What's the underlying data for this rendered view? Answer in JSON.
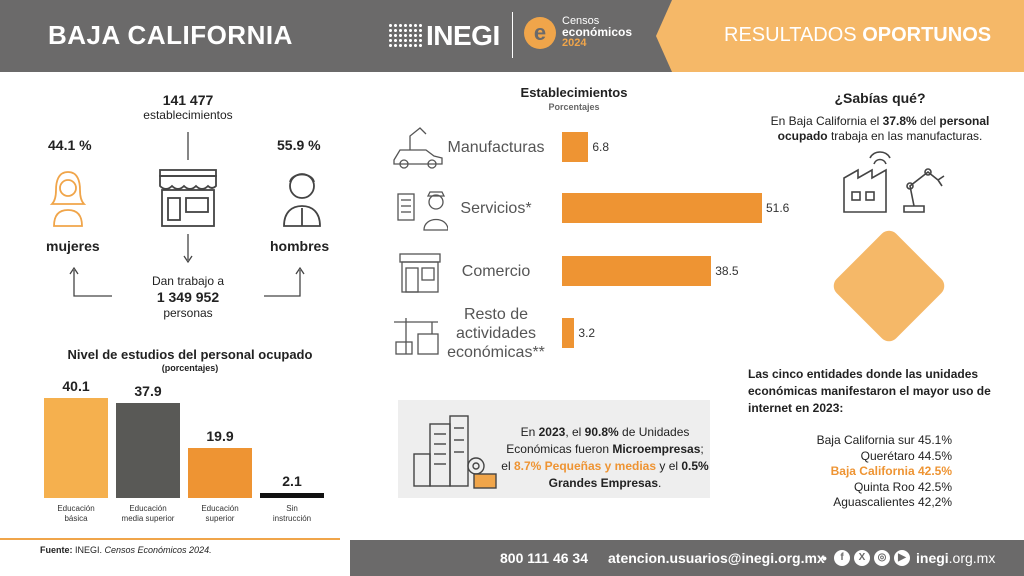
{
  "header": {
    "region_title": "BAJA CALIFORNIA",
    "inegi_logo": "INEGI",
    "censos_line1": "Censos",
    "censos_line2": "económicos",
    "censos_year": "2024",
    "banner_light": "RESULTADOS",
    "banner_bold": "OPORTUNOS"
  },
  "summary": {
    "total": "141 477",
    "total_label": "establecimientos",
    "women_pct": "44.1 %",
    "women_label": "mujeres",
    "men_pct": "55.9 %",
    "men_label": "hombres",
    "employ_prefix": "Dan trabajo a",
    "employ_total": "1 349 952",
    "employ_suffix": "personas"
  },
  "education": {
    "title": "Nivel de estudios del personal ocupado",
    "subtitle": "(porcentajes)",
    "bars": [
      {
        "value": 40.1,
        "value_text": "40.1",
        "label_1": "Educación",
        "label_2": "básica",
        "color": "#f5b04e"
      },
      {
        "value": 37.9,
        "value_text": "37.9",
        "label_1": "Educación",
        "label_2": "media superior",
        "color": "#595956"
      },
      {
        "value": 19.9,
        "value_text": "19.9",
        "label_1": "Educación",
        "label_2": "superior",
        "color": "#ee9433"
      },
      {
        "value": 2.1,
        "value_text": "2.1",
        "label_1": "Sin",
        "label_2": "instrucción",
        "color": "#111111"
      }
    ]
  },
  "chart_data": {
    "type": "bar",
    "title": "Establecimientos",
    "subtitle": "Porcentajes",
    "categories": [
      "Manufacturas",
      "Servicios*",
      "Comercio",
      "Resto de actividades económicas**"
    ],
    "values": [
      6.8,
      51.6,
      38.5,
      3.2
    ],
    "value_labels": [
      "6.8",
      "51.6",
      "38.5",
      "3.2"
    ],
    "category_lines": [
      [
        "Manufacturas"
      ],
      [
        "Servicios*"
      ],
      [
        "Comercio"
      ],
      [
        "Resto de",
        "actividades",
        "económicas**"
      ]
    ],
    "orientation": "horizontal",
    "color": "#ee9433"
  },
  "info_box": {
    "t1": "En ",
    "t2": "2023",
    "t3": ", el ",
    "t4": "90.8%",
    "t5": " de Unidades Económicas fueron ",
    "t6": "Microempresas",
    "t7": "; el ",
    "t8": "8.7% Pequeñas y medias",
    "t9": " y el ",
    "t10": "0.5% Grandes Empresas",
    "t11": "."
  },
  "sabias": {
    "title": "¿Sabías qué?",
    "t1": "En Baja California el ",
    "t2": "37.8%",
    "t3": " del ",
    "t4": "personal ocupado",
    "t5": " trabaja en las manufacturas."
  },
  "internet": {
    "title": "Las cinco entidades donde las unidades económicas manifestaron el mayor uso de internet en 2023:",
    "entities": [
      {
        "text": "Baja California sur 45.1%",
        "highlight": false
      },
      {
        "text": "Querétaro 44.5%",
        "highlight": false
      },
      {
        "text": "Baja California 42.5%",
        "highlight": true
      },
      {
        "text": "Quinta Roo 42.5%",
        "highlight": false
      },
      {
        "text": "Aguascalientes 42,2%",
        "highlight": false
      }
    ],
    "highlight_color": "#ee9433"
  },
  "source": {
    "prefix": "Fuente:",
    "inst": " INEGI. ",
    "name": "Censos Económicos 2024."
  },
  "footer": {
    "phone": "800 111 46 34",
    "email": "atencion.usuarios@inegi.org.mx",
    "bullet": "•",
    "site_bold": "inegi",
    "site_rest": ".org.mx",
    "social_icons": [
      "facebook-icon",
      "x-icon",
      "instagram-icon",
      "youtube-icon"
    ]
  }
}
